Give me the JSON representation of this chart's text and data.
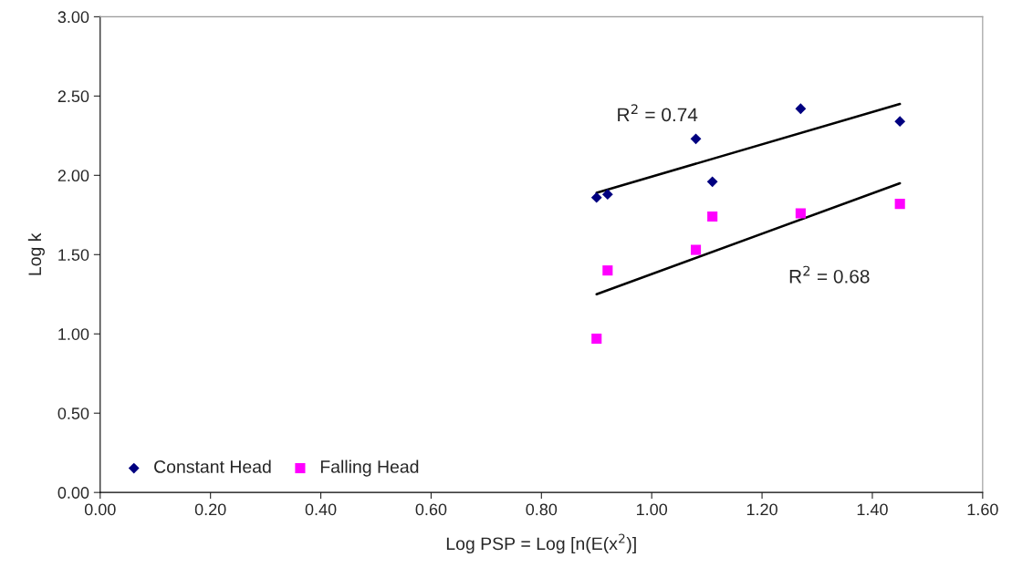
{
  "chart_data": {
    "type": "scatter",
    "xlabel": "Log PSP = Log [n(E(x$^{2}$)]",
    "ylabel": "Log k",
    "xlim": [
      0,
      1.6
    ],
    "ylim": [
      0,
      3
    ],
    "xticks": [
      {
        "value": 0,
        "label": "0.00"
      },
      {
        "value": 0.2,
        "label": "0.20"
      },
      {
        "value": 0.4,
        "label": "0.40"
      },
      {
        "value": 0.6,
        "label": "0.60"
      },
      {
        "value": 0.8,
        "label": "0.80"
      },
      {
        "value": 1.0,
        "label": "1.00"
      },
      {
        "value": 1.2,
        "label": "1.20"
      },
      {
        "value": 1.4,
        "label": "1.40"
      },
      {
        "value": 1.6,
        "label": "1.60"
      }
    ],
    "yticks": [
      {
        "value": 0,
        "label": "0.00"
      },
      {
        "value": 0.5,
        "label": "0.50"
      },
      {
        "value": 1.0,
        "label": "1.00"
      },
      {
        "value": 1.5,
        "label": "1.50"
      },
      {
        "value": 2.0,
        "label": "2.00"
      },
      {
        "value": 2.5,
        "label": "2.50"
      },
      {
        "value": 3.0,
        "label": "3.00"
      }
    ],
    "grid": false,
    "legend": "bottom left",
    "series": [
      {
        "name": "Constant Head",
        "marker": "diamond",
        "color": "#000080",
        "x": [
          0.9,
          0.92,
          1.08,
          1.11,
          1.27,
          1.45
        ],
        "values": [
          1.86,
          1.88,
          2.23,
          1.96,
          2.42,
          2.34
        ]
      },
      {
        "name": "Falling Head",
        "marker": "square",
        "color": "#ff00ff",
        "x": [
          0.9,
          0.92,
          1.08,
          1.11,
          1.27,
          1.45
        ],
        "values": [
          0.97,
          1.4,
          1.53,
          1.74,
          1.76,
          1.82
        ]
      },
      {
        "type": "line",
        "marker": "none",
        "color": "#000000",
        "x": [
          0.9,
          1.45
        ],
        "values": [
          1.89,
          2.45
        ]
      },
      {
        "type": "line",
        "marker": "none",
        "color": "#000000",
        "x": [
          0.9,
          1.45
        ],
        "values": [
          1.25,
          1.95
        ]
      }
    ],
    "annotations": [
      "R$^{2}$ = 0.74",
      "R$^{2}$ = 0.68"
    ]
  }
}
